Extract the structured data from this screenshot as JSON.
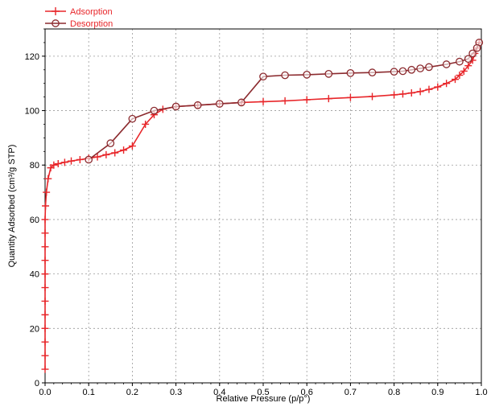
{
  "chart_data": {
    "type": "line",
    "title": "",
    "xlabel": "Relative Pressure (p/p°)",
    "ylabel": "Quantity Adsorbed (cm³/g STP)",
    "xlim": [
      0,
      1
    ],
    "ylim": [
      0,
      130
    ],
    "xticks": [
      0.0,
      0.1,
      0.2,
      0.3,
      0.4,
      0.5,
      0.6,
      0.7,
      0.8,
      0.9,
      1.0
    ],
    "xtick_labels": [
      "0.0",
      "0.1",
      "0.2",
      "0.3",
      "0.4",
      "0.5",
      "0.6",
      "0.7",
      "0.8",
      "0.9",
      "1.0"
    ],
    "yticks": [
      0,
      20,
      40,
      60,
      80,
      100,
      120
    ],
    "ytick_labels": [
      "0",
      "20",
      "40",
      "60",
      "80",
      "100",
      "120"
    ],
    "grid": true,
    "legend_position": "top-left",
    "series": [
      {
        "name": "Adsorption",
        "color": "#e8262a",
        "marker": "plus",
        "x": [
          0.0,
          0.0,
          0.0,
          0.0,
          0.0,
          0.0,
          0.0,
          0.0,
          0.0,
          0.0,
          0.0,
          0.0,
          0.001,
          0.003,
          0.007,
          0.013,
          0.02,
          0.03,
          0.045,
          0.06,
          0.08,
          0.1,
          0.12,
          0.14,
          0.16,
          0.18,
          0.2,
          0.23,
          0.25,
          0.27,
          0.3,
          0.35,
          0.4,
          0.45,
          0.5,
          0.55,
          0.6,
          0.65,
          0.7,
          0.75,
          0.8,
          0.82,
          0.84,
          0.86,
          0.88,
          0.9,
          0.92,
          0.94,
          0.95,
          0.96,
          0.97,
          0.98,
          0.985,
          0.99,
          0.995
        ],
        "y": [
          5,
          10,
          15,
          20,
          25,
          30,
          35,
          40,
          45,
          50,
          55,
          60,
          65,
          70,
          75,
          79,
          80,
          80.5,
          81,
          81.5,
          82,
          82.5,
          83,
          83.8,
          84.5,
          85.5,
          87,
          95,
          98.5,
          100.5,
          101.5,
          102,
          102.5,
          103,
          103.3,
          103.6,
          104,
          104.4,
          104.8,
          105.2,
          105.8,
          106.1,
          106.5,
          107,
          107.8,
          108.7,
          110,
          111.5,
          113,
          114.5,
          116.5,
          118.5,
          121,
          123,
          125
        ]
      },
      {
        "name": "Desorption",
        "color": "#8b2a2e",
        "marker": "circle",
        "x": [
          0.995,
          0.99,
          0.98,
          0.97,
          0.95,
          0.92,
          0.88,
          0.86,
          0.84,
          0.82,
          0.8,
          0.75,
          0.7,
          0.65,
          0.6,
          0.55,
          0.5,
          0.45,
          0.4,
          0.35,
          0.3,
          0.25,
          0.2,
          0.15,
          0.1
        ],
        "y": [
          125,
          123,
          121,
          119,
          118,
          117,
          116,
          115.5,
          115,
          114.5,
          114.3,
          114,
          113.8,
          113.5,
          113.2,
          113,
          112.5,
          103,
          102.5,
          102,
          101.5,
          100,
          97,
          88,
          82
        ]
      }
    ]
  }
}
